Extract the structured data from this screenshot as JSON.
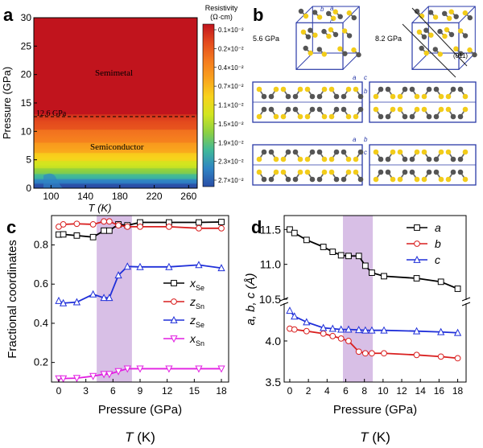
{
  "panels": {
    "a": "a",
    "b": "b",
    "c": "c",
    "d": "d"
  },
  "chart_data": [
    {
      "type": "heatmap",
      "panel": "a",
      "xlabel": "T (K)",
      "ylabel": "Pressure (GPa)",
      "xlim": [
        80,
        270
      ],
      "ylim": [
        0,
        30
      ],
      "xticks": [
        100,
        140,
        180,
        220,
        260
      ],
      "yticks": [
        0,
        5,
        10,
        15,
        20,
        25,
        30
      ],
      "annotations": {
        "dashed_line_label": "12.6 GPa",
        "dashed_line_value": 12.6,
        "upper_region": "Semimetal",
        "lower_region": "Semiconductor"
      },
      "colorbar": {
        "title_line1": "Resistivity",
        "title_line2": "(Ω·cm)",
        "labels": [
          "0.1×10⁻²",
          "0.2×10⁻²",
          "0.4×10⁻²",
          "0.7×10⁻²",
          "1.1×10⁻²",
          "1.5×10⁻²",
          "1.9×10⁻²",
          "2.3×10⁻²",
          "2.7×10⁻²"
        ],
        "colors": [
          "#c1141e",
          "#e34a1e",
          "#f47a1f",
          "#f9a11d",
          "#f8d21c",
          "#d2e51f",
          "#8cd042",
          "#3fb89a",
          "#2f84c4",
          "#2a4ea6"
        ]
      },
      "bands": [
        {
          "p_min": 0.0,
          "p_max": 0.8,
          "color": "#2a4ea6"
        },
        {
          "p_min": 0.8,
          "p_max": 1.6,
          "color": "#2f84c4"
        },
        {
          "p_min": 1.6,
          "p_max": 2.5,
          "color": "#3fb89a"
        },
        {
          "p_min": 2.5,
          "p_max": 3.5,
          "color": "#8cd042"
        },
        {
          "p_min": 3.5,
          "p_max": 4.8,
          "color": "#d2e51f"
        },
        {
          "p_min": 4.8,
          "p_max": 6.2,
          "color": "#f8d21c"
        },
        {
          "p_min": 6.2,
          "p_max": 8.0,
          "color": "#f9a11d"
        },
        {
          "p_min": 8.0,
          "p_max": 10.3,
          "color": "#f47a1f"
        },
        {
          "p_min": 10.3,
          "p_max": 13.0,
          "color": "#e34a1e"
        },
        {
          "p_min": 13.0,
          "p_max": 30.0,
          "color": "#c1141e"
        }
      ]
    },
    {
      "type": "line",
      "panel": "c",
      "xlabel": "Pressure (GPa)",
      "xlabel_below": "T (K)",
      "ylabel": "Fractional coordinates",
      "xlim": [
        -0.8,
        18.8
      ],
      "ylim": [
        0.1,
        0.95
      ],
      "xticks": [
        0,
        3,
        6,
        9,
        12,
        15,
        18
      ],
      "yticks": [
        0.2,
        0.4,
        0.6,
        0.8
      ],
      "shaded_region": [
        4.2,
        8.1
      ],
      "series": [
        {
          "name": "Se",
          "name_prefix": "x",
          "marker": "square",
          "color": "#000000",
          "x": [
            0,
            0.5,
            2,
            3.8,
            5,
            5.6,
            6.6,
            7.6,
            9,
            12.2,
            15.5,
            18
          ],
          "y": [
            0.853,
            0.854,
            0.848,
            0.84,
            0.873,
            0.873,
            0.905,
            0.9,
            0.915,
            0.915,
            0.915,
            0.917
          ]
        },
        {
          "name": "Sn",
          "name_prefix": "z",
          "marker": "circle",
          "color": "#d91f1f",
          "x": [
            0,
            0.5,
            2,
            3.8,
            5,
            5.6,
            6.6,
            7.6,
            9,
            12.2,
            15.5,
            18
          ],
          "y": [
            0.893,
            0.905,
            0.908,
            0.905,
            0.92,
            0.92,
            0.9,
            0.893,
            0.893,
            0.893,
            0.885,
            0.885
          ]
        },
        {
          "name": "Se",
          "name_prefix": "z",
          "marker": "triangle-up",
          "color": "#1f2fd9",
          "x": [
            0,
            0.5,
            2,
            3.8,
            5,
            5.6,
            6.6,
            7.6,
            9,
            12.2,
            15.5,
            18
          ],
          "y": [
            0.515,
            0.503,
            0.508,
            0.548,
            0.53,
            0.53,
            0.645,
            0.69,
            0.688,
            0.688,
            0.698,
            0.682
          ]
        },
        {
          "name": "Sn",
          "name_prefix": "x",
          "marker": "triangle-down",
          "color": "#e21fe2",
          "x": [
            0,
            0.5,
            2,
            3.8,
            5,
            5.6,
            6.6,
            7.6,
            9,
            12.2,
            15.5,
            18
          ],
          "y": [
            0.118,
            0.118,
            0.12,
            0.13,
            0.14,
            0.14,
            0.155,
            0.168,
            0.168,
            0.168,
            0.168,
            0.168
          ]
        }
      ]
    },
    {
      "type": "line",
      "panel": "d",
      "xlabel": "Pressure (GPa)",
      "xlabel_below": "T (K)",
      "ylabel": "a, b, c (Å)",
      "xlim": [
        -0.6,
        18.9
      ],
      "axis_break": true,
      "upper_ylim": [
        10.5,
        11.7
      ],
      "upper_yticks": [
        10.5,
        11.0,
        11.5
      ],
      "lower_ylim": [
        3.5,
        4.45
      ],
      "lower_yticks": [
        3.5,
        4.0
      ],
      "xticks": [
        0,
        2,
        4,
        6,
        8,
        10,
        12,
        14,
        16,
        18
      ],
      "shaded_region": [
        5.7,
        8.9
      ],
      "series": [
        {
          "name": "a",
          "marker": "square",
          "color": "#000000",
          "axis": "upper",
          "x": [
            0,
            0.5,
            1.8,
            3.6,
            4.6,
            5.5,
            6.3,
            7.4,
            8.1,
            8.8,
            10.1,
            13.6,
            16.2,
            18
          ],
          "y": [
            11.5,
            11.45,
            11.35,
            11.25,
            11.18,
            11.13,
            11.12,
            11.12,
            10.98,
            10.88,
            10.83,
            10.8,
            10.75,
            10.65
          ]
        },
        {
          "name": "b",
          "marker": "circle",
          "color": "#d91f1f",
          "axis": "lower",
          "x": [
            0,
            0.5,
            1.8,
            3.6,
            4.6,
            5.5,
            6.3,
            7.4,
            8.1,
            8.8,
            10.1,
            13.6,
            16.2,
            18
          ],
          "y": [
            4.15,
            4.14,
            4.12,
            4.09,
            4.06,
            4.03,
            4.0,
            3.87,
            3.85,
            3.85,
            3.85,
            3.83,
            3.81,
            3.79
          ]
        },
        {
          "name": "c",
          "marker": "triangle-up",
          "color": "#1f2fd9",
          "axis": "lower",
          "x": [
            0,
            0.5,
            1.8,
            3.6,
            4.6,
            5.5,
            6.3,
            7.4,
            8.1,
            8.8,
            10.1,
            13.6,
            16.2,
            18
          ],
          "y": [
            4.37,
            4.3,
            4.23,
            4.16,
            4.15,
            4.14,
            4.14,
            4.135,
            4.13,
            4.13,
            4.13,
            4.12,
            4.11,
            4.1
          ]
        }
      ]
    }
  ],
  "structures": {
    "pressure_1": "5.6 GPa",
    "pressure_2": "8.2 GPa",
    "plane": "(011)",
    "axes": {
      "a": "a",
      "b": "b",
      "c": "c"
    },
    "colors": {
      "sn": "#555555",
      "se": "#f2cc1a",
      "cell": "#2a3aa8"
    }
  }
}
